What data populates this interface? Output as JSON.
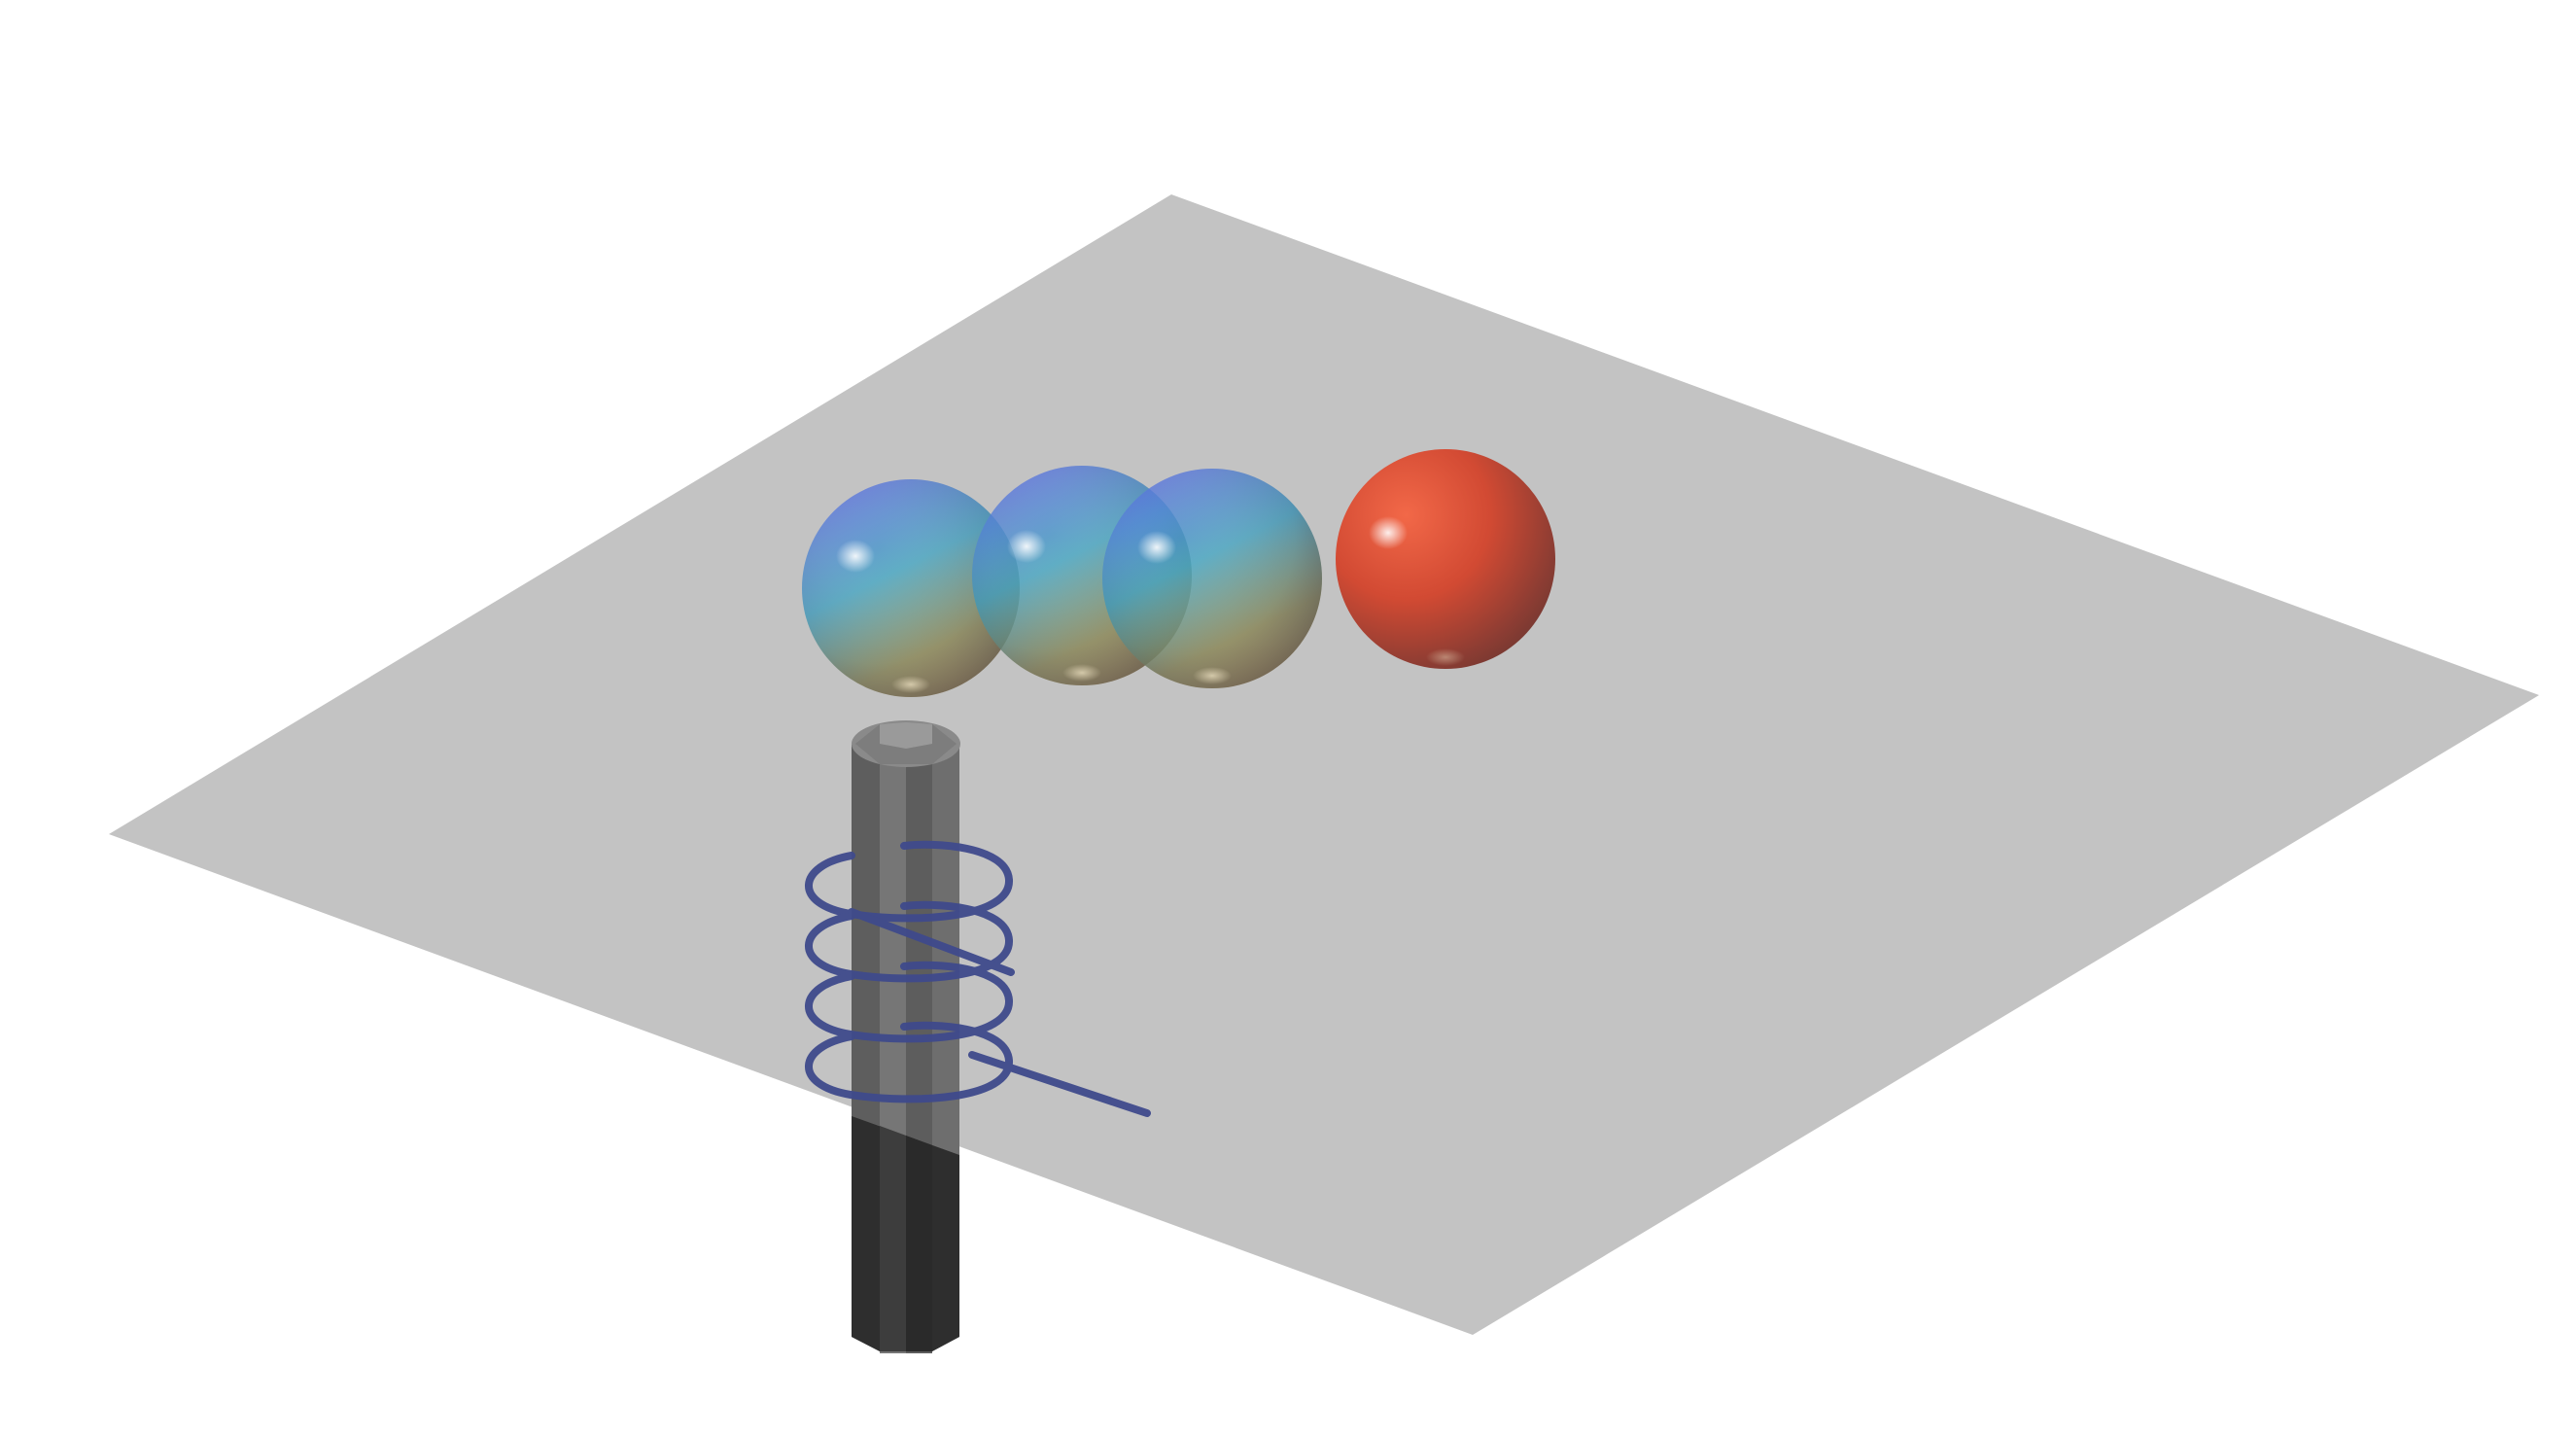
{
  "scene": {
    "background": "#ffffff",
    "plane": {
      "color": "#c3c3c3"
    },
    "spheres": [
      {
        "id": 1,
        "material": "transparent-gradient",
        "colors": [
          "#5a6ee6",
          "#3fa3c8",
          "#b59a56"
        ]
      },
      {
        "id": 2,
        "material": "transparent-gradient",
        "colors": [
          "#5a6ee6",
          "#3fa3c8",
          "#b59a56"
        ]
      },
      {
        "id": 3,
        "material": "transparent-gradient",
        "colors": [
          "#5a6ee6",
          "#3fa3c8",
          "#b59a56"
        ]
      },
      {
        "id": 4,
        "material": "solid",
        "colors": [
          "#e8553c",
          "#b8402d",
          "#6e3a32"
        ]
      }
    ],
    "cylinder": {
      "colors": [
        "#4a4a4a",
        "#6c6c6c",
        "#5a5a5a",
        "#2c2c2c"
      ]
    },
    "helix": {
      "color": "#3f4a8c",
      "turns": 4
    }
  }
}
